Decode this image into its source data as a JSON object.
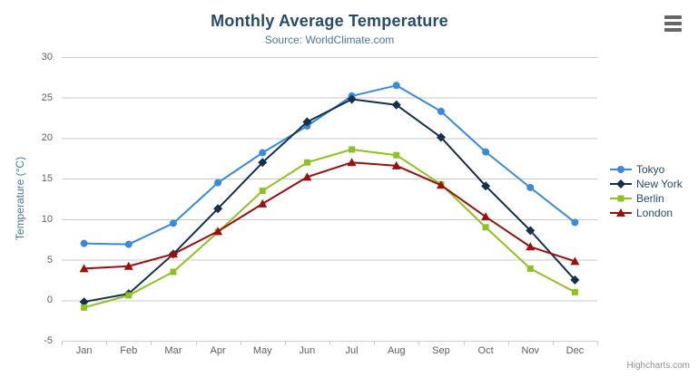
{
  "chart": {
    "credits": "Highcharts.com",
    "menu_icon": "hamburger-menu-icon",
    "background_color": "#ffffff",
    "grid_color": "#c9c9c9",
    "axis_line_color": "#c0d0e0",
    "tick_label_color": "#606060",
    "title_color": "#274b6d",
    "subtitle_color": "#4d759e",
    "legend_text_color": "#274b6d",
    "credits_color": "#909090"
  },
  "chart_data": {
    "type": "line",
    "title": "Monthly Average Temperature",
    "subtitle": "Source: WorldClimate.com",
    "xlabel": "",
    "ylabel": "Temperature (°C)",
    "categories": [
      "Jan",
      "Feb",
      "Mar",
      "Apr",
      "May",
      "Jun",
      "Jul",
      "Aug",
      "Sep",
      "Oct",
      "Nov",
      "Dec"
    ],
    "ylim": [
      -5,
      30
    ],
    "yticks": [
      -5,
      0,
      5,
      10,
      15,
      20,
      25,
      30
    ],
    "grid": true,
    "legend_position": "right",
    "series": [
      {
        "name": "Tokyo",
        "color": "#3989dd",
        "marker": "circle",
        "values": [
          7.0,
          6.9,
          9.5,
          14.5,
          18.2,
          21.5,
          25.2,
          26.5,
          23.3,
          18.3,
          13.9,
          9.6
        ]
      },
      {
        "name": "New York",
        "color": "#15304a",
        "marker": "diamond",
        "values": [
          -0.2,
          0.8,
          5.7,
          11.3,
          17.0,
          22.0,
          24.8,
          24.1,
          20.1,
          14.1,
          8.6,
          2.5
        ]
      },
      {
        "name": "Berlin",
        "color": "#8dc21f",
        "marker": "square",
        "values": [
          -0.9,
          0.6,
          3.5,
          8.4,
          13.5,
          17.0,
          18.6,
          17.9,
          14.3,
          9.0,
          3.9,
          1.0
        ]
      },
      {
        "name": "London",
        "color": "#9b0f0f",
        "marker": "triangle",
        "values": [
          3.9,
          4.2,
          5.7,
          8.5,
          11.9,
          15.2,
          17.0,
          16.6,
          14.2,
          10.3,
          6.6,
          4.8
        ]
      }
    ]
  }
}
